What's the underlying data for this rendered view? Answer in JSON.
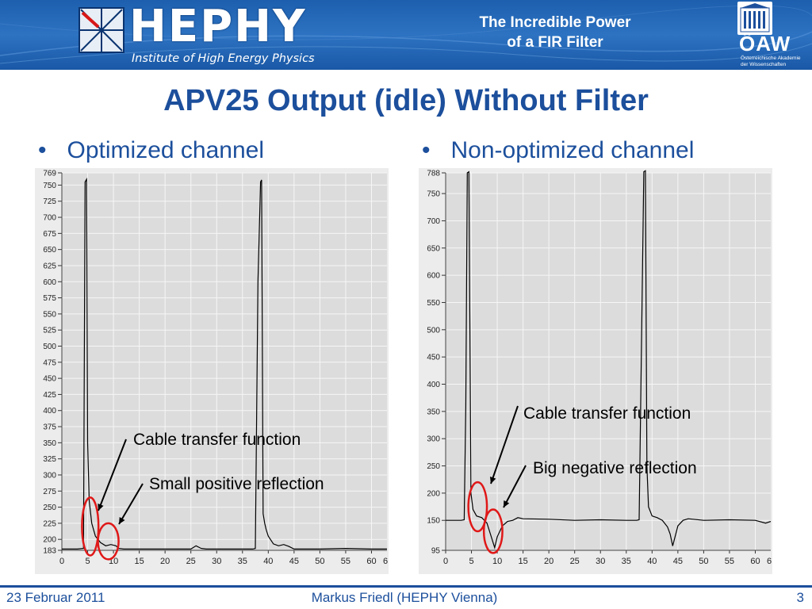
{
  "header": {
    "logo_text": "HEPHY",
    "logo_subtitle": "Institute of High Energy Physics",
    "talk_title_line1": "The Incredible Power",
    "talk_title_line2": "of a FIR Filter",
    "oaw_name": "ÖAW",
    "oaw_sub_line1": "Österreichische Akademie",
    "oaw_sub_line2": "der Wissenschaften",
    "icons": [
      "hephy-starburst-logo-icon",
      "academy-building-icon"
    ]
  },
  "slide": {
    "title": "APV25 Output (idle) Without Filter",
    "bullet_left": "Optimized channel",
    "bullet_right": "Non-optimized channel"
  },
  "chart_data": [
    {
      "type": "line",
      "series_color": "#000000",
      "background": "#dcdcdc",
      "grid": true,
      "xlim": [
        0,
        63
      ],
      "ylim": [
        183,
        769
      ],
      "x_ticks": [
        "0",
        "5",
        "10",
        "15",
        "20",
        "25",
        "30",
        "35",
        "40",
        "45",
        "50",
        "55",
        "60",
        "6"
      ],
      "y_ticks": [
        "769",
        "750",
        "725",
        "700",
        "675",
        "650",
        "625",
        "600",
        "575",
        "550",
        "525",
        "500",
        "475",
        "450",
        "425",
        "400",
        "375",
        "350",
        "325",
        "300",
        "275",
        "250",
        "225",
        "200",
        "183"
      ],
      "x": [
        0,
        3,
        4.2,
        4.5,
        4.8,
        5,
        5.3,
        5.8,
        6.5,
        7.5,
        8.5,
        9.5,
        10.5,
        11,
        12,
        15,
        20,
        25,
        26,
        27,
        28,
        30,
        35,
        37,
        37.5,
        38,
        38.5,
        38.7,
        39,
        39.3,
        39.6,
        40,
        41,
        42,
        43,
        44,
        45,
        50,
        55,
        60,
        63
      ],
      "y": [
        185,
        185,
        186,
        755,
        759,
        350,
        260,
        225,
        205,
        195,
        190,
        192,
        190,
        186,
        185,
        185,
        185,
        185,
        190,
        186,
        185,
        185,
        185,
        185,
        186,
        600,
        755,
        758,
        240,
        225,
        215,
        205,
        193,
        190,
        192,
        189,
        185,
        185,
        186,
        185,
        185
      ],
      "annotations": [
        {
          "label": "Cable transfer function"
        },
        {
          "label": "Small positive reflection"
        }
      ],
      "ellipses": [
        {
          "x": 5.5,
          "y": 220,
          "rx": 1.6,
          "ry": 45
        },
        {
          "x": 9,
          "y": 197,
          "rx": 2,
          "ry": 28
        }
      ]
    },
    {
      "type": "line",
      "series_color": "#000000",
      "background": "#dcdcdc",
      "grid": true,
      "xlim": [
        0,
        63
      ],
      "ylim": [
        95,
        788
      ],
      "x_ticks": [
        "0",
        "5",
        "10",
        "15",
        "20",
        "25",
        "30",
        "35",
        "40",
        "45",
        "50",
        "55",
        "60",
        "6"
      ],
      "y_ticks": [
        "788",
        "750",
        "700",
        "650",
        "600",
        "550",
        "500",
        "450",
        "400",
        "350",
        "300",
        "250",
        "200",
        "150",
        "95"
      ],
      "x": [
        0,
        3,
        3.6,
        3.9,
        4.2,
        4.5,
        4.9,
        5.3,
        6,
        7,
        8,
        9,
        9.5,
        10,
        11,
        12,
        13,
        14,
        15,
        20,
        25,
        30,
        35,
        37,
        37.5,
        38.4,
        38.7,
        39,
        39.3,
        40,
        41,
        42,
        43,
        43.5,
        44,
        45,
        46,
        47,
        50,
        55,
        60,
        62,
        63
      ],
      "y": [
        150,
        150,
        151,
        360,
        788,
        790,
        200,
        170,
        158,
        155,
        145,
        115,
        100,
        120,
        140,
        148,
        150,
        155,
        153,
        152,
        150,
        151,
        150,
        150,
        151,
        790,
        792,
        250,
        175,
        158,
        155,
        150,
        138,
        125,
        103,
        140,
        150,
        153,
        150,
        151,
        150,
        145,
        148
      ],
      "annotations": [
        {
          "label": "Cable transfer function"
        },
        {
          "label": "Big negative reflection"
        }
      ],
      "ellipses": [
        {
          "x": 6.2,
          "y": 175,
          "rx": 1.8,
          "ry": 45
        },
        {
          "x": 9.2,
          "y": 130,
          "rx": 1.8,
          "ry": 40
        }
      ]
    }
  ],
  "footer": {
    "date": "23 Februar 2011",
    "author": "Markus Friedl (HEPHY Vienna)",
    "page_number": "3"
  }
}
